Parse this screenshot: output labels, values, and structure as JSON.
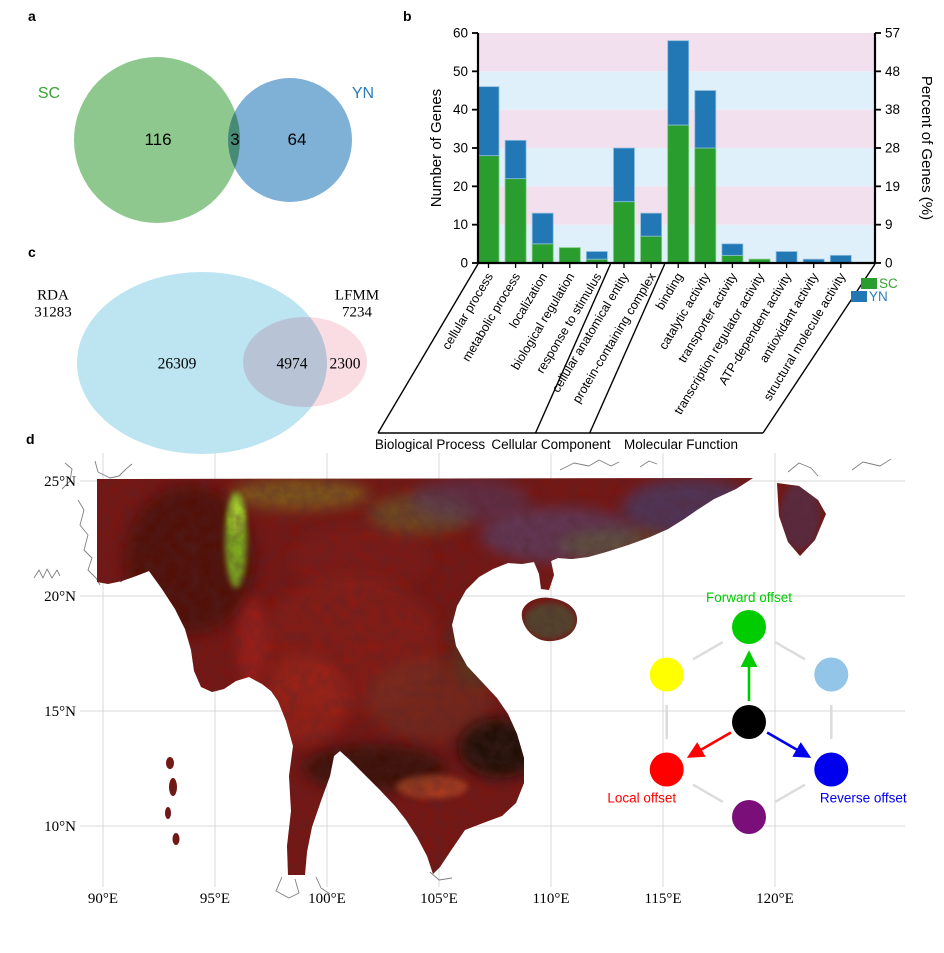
{
  "panels": {
    "a": {
      "letter": "a"
    },
    "b": {
      "letter": "b"
    },
    "c": {
      "letter": "c"
    },
    "d": {
      "letter": "d"
    }
  },
  "chart_data": [
    {
      "type": "venn",
      "panel": "a",
      "sets": [
        {
          "label": "SC",
          "only": 116,
          "fill": "#8fc88e",
          "label_color": "#36a433"
        },
        {
          "label": "YN",
          "only": 64,
          "fill": "#7fb0d5",
          "label_color": "#2b7bba"
        }
      ],
      "overlap": 3
    },
    {
      "type": "bar",
      "panel": "b",
      "stacked": true,
      "categories": [
        "cellular process",
        "metabolic process",
        "localization",
        "biological regulation",
        "response to stimulus",
        "cellular anatomical entity",
        "protein-containing complex",
        "binding",
        "catalytic activity",
        "transporter activity",
        "transcription regulator activity",
        "ATP-dependent activity",
        "antioxidant activity",
        "structural molecule activity"
      ],
      "series": [
        {
          "name": "SC",
          "color": "#2a9d2f",
          "edge": "#7cc87c",
          "values": [
            28,
            22,
            5,
            4,
            1,
            16,
            7,
            36,
            30,
            2,
            1,
            0,
            0,
            0
          ]
        },
        {
          "name": "YN",
          "color": "#2277b5",
          "edge": "#8fbede",
          "values": [
            18,
            10,
            8,
            0,
            2,
            14,
            6,
            22,
            15,
            3,
            0,
            3,
            1,
            2
          ]
        }
      ],
      "groups": [
        {
          "label": "Biological Process",
          "from": 0,
          "to": 4
        },
        {
          "label": "Cellular Component",
          "from": 5,
          "to": 6
        },
        {
          "label": "Molecular Function",
          "from": 7,
          "to": 13
        }
      ],
      "ylabel": "Number of Genes",
      "y2label": "Percent of Genes (%)",
      "yticks": [
        0,
        10,
        20,
        30,
        40,
        50,
        60
      ],
      "y2ticks": [
        0,
        9,
        19,
        28,
        38,
        48,
        57
      ],
      "ylim": [
        0,
        60
      ],
      "band_colors": [
        "#e0f0fb",
        "#f3e0ee"
      ],
      "legend": [
        {
          "name": "SC",
          "color": "#2a9d2f",
          "text_color": "#36a433"
        },
        {
          "name": "YN",
          "color": "#2277b5",
          "text_color": "#2b7bba"
        }
      ]
    },
    {
      "type": "venn",
      "panel": "c",
      "sets": [
        {
          "label": "RDA",
          "total": 31283,
          "only": 26309,
          "fill": "#bce4f1"
        },
        {
          "label": "LFMM",
          "total": 7234,
          "only": 2300,
          "fill": "#fadce3"
        }
      ],
      "overlap": 4974
    },
    {
      "type": "map",
      "panel": "d",
      "lon_ticks": [
        {
          "v": 90,
          "label": "90°E"
        },
        {
          "v": 95,
          "label": "95°E"
        },
        {
          "v": 100,
          "label": "100°E"
        },
        {
          "v": 105,
          "label": "105°E"
        },
        {
          "v": 110,
          "label": "110°E"
        },
        {
          "v": 115,
          "label": "115°E"
        },
        {
          "v": 120,
          "label": "120°E"
        }
      ],
      "lat_ticks": [
        {
          "v": 25,
          "label": "25°N"
        },
        {
          "v": 20,
          "label": "20°N"
        },
        {
          "v": 15,
          "label": "15°N"
        },
        {
          "v": 10,
          "label": "10°N"
        }
      ],
      "offset_legend": {
        "nodes": [
          {
            "id": "forward",
            "color": "#00cc00",
            "angle": 90,
            "label": "Forward offset"
          },
          {
            "id": "upper-left",
            "color": "#ffff00",
            "angle": 150,
            "label": ""
          },
          {
            "id": "upper-right",
            "color": "#92c5e8",
            "angle": 30,
            "label": ""
          },
          {
            "id": "center",
            "color": "#000000",
            "angle": null,
            "label": ""
          },
          {
            "id": "local",
            "color": "#ff0000",
            "angle": 210,
            "label": "Local offset"
          },
          {
            "id": "reverse",
            "color": "#0000ee",
            "angle": 330,
            "label": "Reverse offset"
          },
          {
            "id": "bottom",
            "color": "#7a0f7a",
            "angle": 270,
            "label": ""
          }
        ],
        "arrows": [
          "forward",
          "local",
          "reverse"
        ]
      }
    }
  ]
}
